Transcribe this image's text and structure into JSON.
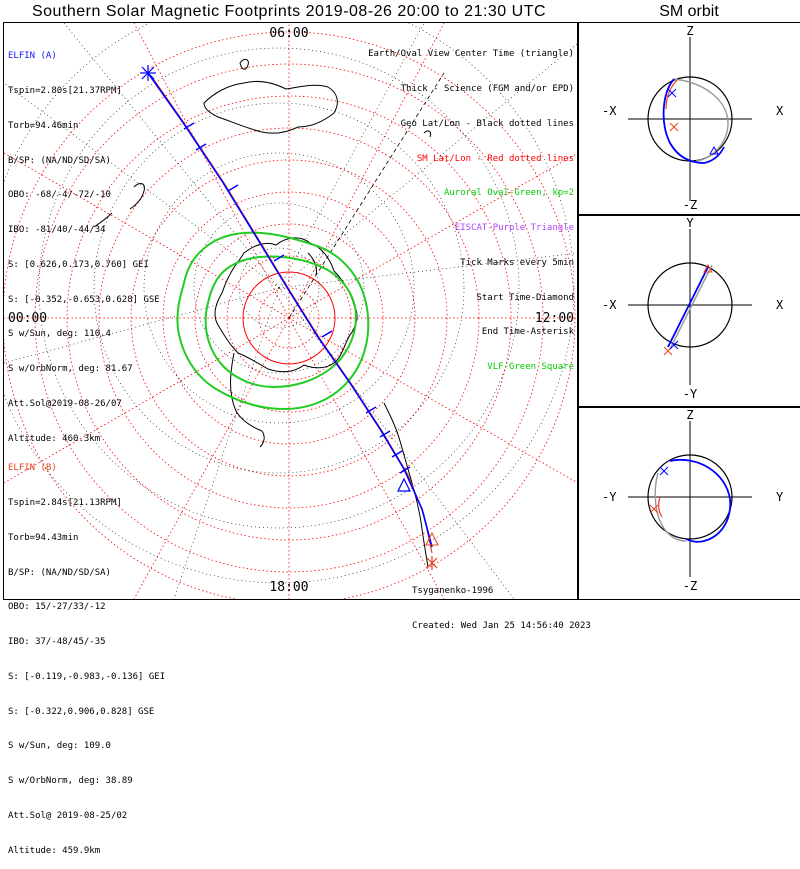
{
  "title": "Southern Solar Magnetic Footprints 2019-08-26 20:00 to 21:30 UTC",
  "orbit_title": "SM orbit",
  "colors": {
    "elfin_a": "#0000ff",
    "elfin_b": "#e8401c",
    "oval": "#00cc00",
    "sm_grid": "#ff0000",
    "eiscat": "#b040ff",
    "geo_grid": "#000000",
    "orbit_gray": "#999999"
  },
  "map": {
    "mlt_labels": {
      "top": "06:00",
      "left": "00:00",
      "right": "12:00",
      "bottom": "18:00"
    }
  },
  "elfin_a": {
    "name": "ELFIN (A)",
    "lines": [
      "Tspin=2.80s[21.37RPM]",
      "Torb=94.46min",
      "B/SP: (NA/ND/SD/SA)",
      "OBO: -68/-4/-72/-10",
      "IBO: -81/40/-44/34",
      "S: [0.626,0.173,0.760] GEI",
      "S: [-0.352,-0.653,0.628] GSE",
      "S w/Sun, deg: 110.4",
      "S w/OrbNorm, deg: 81.67",
      "Att.Sol@2019-08-26/07",
      "Altitude: 460.3km"
    ]
  },
  "elfin_b": {
    "name": "ELFIN (B)",
    "lines": [
      "Tspin=2.84s[21.13RPM]",
      "Torb=94.43min",
      "B/SP: (NA/ND/SD/SA)",
      "OBO: 15/-27/33/-12",
      "IBO: 37/-48/45/-35",
      "S: [-0.119,-0.983,-0.136] GEI",
      "S: [-0.322,0.906,0.828] GSE",
      "S w/Sun, deg: 109.0",
      "S w/OrbNorm, deg: 38.89",
      "Att.Sol@ 2019-08-25/02",
      "Altitude: 459.9km"
    ]
  },
  "legend": [
    {
      "text": "Earth/Oval View Center Time (triangle)",
      "color": "#000000"
    },
    {
      "text": "Thick - Science (FGM and/or EPD)",
      "color": "#000000"
    },
    {
      "text": "Geo Lat/Lon - Black dotted lines",
      "color": "#000000"
    },
    {
      "text": "SM Lat/Lon - Red dotted lines",
      "color": "#ff0000"
    },
    {
      "text": "Auroral Oval-Green, kp=2",
      "color": "#00cc00"
    },
    {
      "text": "EISCAT-Purple Triangle",
      "color": "#b040ff"
    },
    {
      "text": "Tick Marks every 5min",
      "color": "#000000"
    },
    {
      "text": "Start Time-Diamond",
      "color": "#000000"
    },
    {
      "text": "End Time-Asterisk",
      "color": "#000000"
    },
    {
      "text": "VLF-Green Square",
      "color": "#00cc00"
    }
  ],
  "credits": {
    "author": "Tsyganenko-1996",
    "created": "Created: Wed Jan 25 14:56:40 2023"
  },
  "orbit_panels": [
    {
      "top": "Z",
      "bottom": "-Z",
      "left": "-X",
      "right": "X"
    },
    {
      "top": "Y",
      "bottom": "-Y",
      "left": "-X",
      "right": "X"
    },
    {
      "top": "Z",
      "bottom": "-Z",
      "left": "-Y",
      "right": "Y"
    }
  ]
}
